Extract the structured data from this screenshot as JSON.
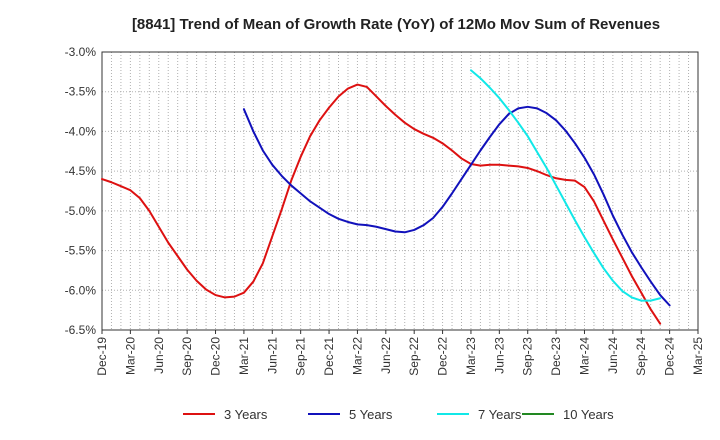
{
  "chart_data": {
    "type": "line",
    "title": "[8841]  Trend of Mean of Growth Rate (YoY) of 12Mo Mov Sum of Revenues",
    "xlabel": "",
    "ylabel": "",
    "ylim": [
      -6.5,
      -3.0
    ],
    "yticks": [
      "-3.0%",
      "-3.5%",
      "-4.0%",
      "-4.5%",
      "-5.0%",
      "-5.5%",
      "-6.0%",
      "-6.5%"
    ],
    "ytick_values": [
      -3.0,
      -3.5,
      -4.0,
      -4.5,
      -5.0,
      -5.5,
      -6.0,
      -6.5
    ],
    "xticks": [
      "Dec-19",
      "Mar-20",
      "Jun-20",
      "Sep-20",
      "Dec-20",
      "Mar-21",
      "Jun-21",
      "Sep-21",
      "Dec-21",
      "Mar-22",
      "Jun-22",
      "Sep-22",
      "Dec-22",
      "Mar-23",
      "Jun-23",
      "Sep-23",
      "Dec-23",
      "Mar-24",
      "Jun-24",
      "Sep-24",
      "Dec-24",
      "Mar-25"
    ],
    "x_months_range": [
      0,
      63
    ],
    "grid": true,
    "legend_position": "bottom",
    "series": [
      {
        "name": "3 Years",
        "color": "#dd1111",
        "start_month": 0,
        "values": [
          -4.6,
          -4.64,
          -4.69,
          -4.74,
          -4.84,
          -5.0,
          -5.2,
          -5.4,
          -5.57,
          -5.74,
          -5.88,
          -5.99,
          -6.06,
          -6.09,
          -6.08,
          -6.03,
          -5.89,
          -5.66,
          -5.32,
          -4.98,
          -4.62,
          -4.32,
          -4.06,
          -3.86,
          -3.7,
          -3.56,
          -3.46,
          -3.41,
          -3.44,
          -3.56,
          -3.68,
          -3.79,
          -3.89,
          -3.97,
          -4.03,
          -4.08,
          -4.15,
          -4.24,
          -4.34,
          -4.41,
          -4.43,
          -4.42,
          -4.42,
          -4.43,
          -4.44,
          -4.46,
          -4.5,
          -4.55,
          -4.59,
          -4.61,
          -4.62,
          -4.7,
          -4.88,
          -5.12,
          -5.36,
          -5.59,
          -5.82,
          -6.03,
          -6.24,
          -6.42
        ]
      },
      {
        "name": "5 Years",
        "color": "#1111bb",
        "start_month": 15,
        "values": [
          -3.72,
          -4.0,
          -4.24,
          -4.42,
          -4.56,
          -4.68,
          -4.78,
          -4.88,
          -4.96,
          -5.04,
          -5.1,
          -5.14,
          -5.17,
          -5.18,
          -5.2,
          -5.23,
          -5.26,
          -5.27,
          -5.24,
          -5.18,
          -5.09,
          -4.95,
          -4.78,
          -4.6,
          -4.42,
          -4.24,
          -4.07,
          -3.91,
          -3.78,
          -3.71,
          -3.69,
          -3.71,
          -3.77,
          -3.86,
          -3.99,
          -4.15,
          -4.33,
          -4.54,
          -4.79,
          -5.06,
          -5.3,
          -5.52,
          -5.71,
          -5.89,
          -6.06,
          -6.19
        ]
      },
      {
        "name": "7 Years",
        "color": "#11e8e8",
        "start_month": 39,
        "values": [
          -3.23,
          -3.33,
          -3.45,
          -3.58,
          -3.73,
          -3.89,
          -4.06,
          -4.26,
          -4.46,
          -4.68,
          -4.9,
          -5.12,
          -5.33,
          -5.53,
          -5.72,
          -5.88,
          -6.01,
          -6.09,
          -6.13,
          -6.13,
          -6.1
        ]
      },
      {
        "name": "10 Years",
        "color": "#228822",
        "start_month": 0,
        "values": []
      }
    ]
  }
}
